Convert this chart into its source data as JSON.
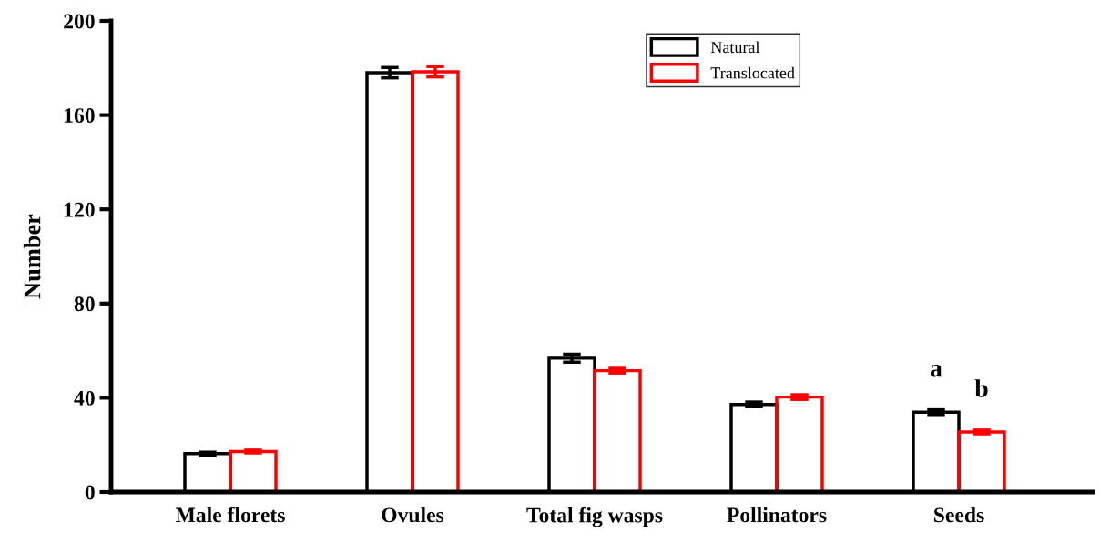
{
  "chart_data": {
    "type": "bar",
    "ylabel": "Number",
    "categories": [
      "Male florets",
      "Ovules",
      "Total fig wasps",
      "Pollinators",
      "Seeds"
    ],
    "series": [
      {
        "name": "Natural",
        "color": "#000000",
        "values": [
          16.3,
          178,
          56.8,
          37.2,
          33.9
        ],
        "errors": [
          0.6,
          2.2,
          1.7,
          1,
          1
        ]
      },
      {
        "name": "Translocated",
        "color": "#ff0000",
        "values": [
          17.2,
          178.4,
          51.5,
          40.3,
          25.5
        ],
        "errors": [
          0.6,
          2.2,
          1,
          1,
          0.8
        ]
      }
    ],
    "ylim": [
      0,
      200
    ],
    "yticks": [
      0,
      40,
      80,
      120,
      160,
      200
    ],
    "annotations": [
      "a",
      "b"
    ],
    "legend": "top right",
    "grid": false
  }
}
